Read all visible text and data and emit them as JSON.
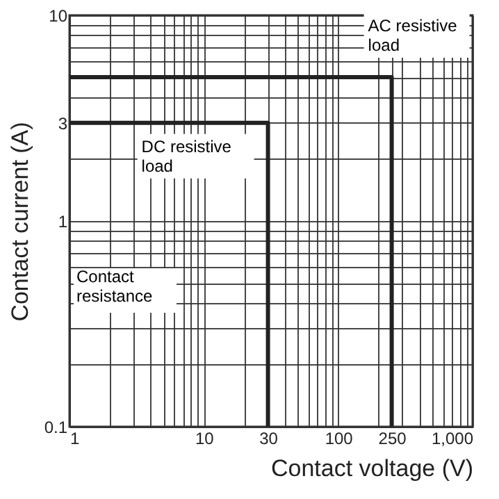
{
  "chart_data": {
    "type": "line",
    "xlabel": "Contact voltage (V)",
    "ylabel": "Contact current (A)",
    "log": "xy",
    "series": [
      {
        "name": "DC resistive load",
        "color": "#222222",
        "x": [
          1,
          30,
          30
        ],
        "values": [
          3,
          3,
          0.1
        ]
      },
      {
        "name": "AC resistive load",
        "color": "#222222",
        "x": [
          1,
          250,
          250
        ],
        "values": [
          5,
          5,
          0.1
        ]
      }
    ],
    "xlim": [
      1,
      1000
    ],
    "ylim": [
      0.1,
      10
    ],
    "xticks": [
      1,
      {
        "value": 2,
        "label": null
      },
      {
        "value": 3,
        "label": null
      },
      {
        "value": 4,
        "label": null
      },
      {
        "value": 5,
        "label": null
      },
      {
        "value": 6,
        "label": null
      },
      {
        "value": 7,
        "label": null
      },
      {
        "value": 8,
        "label": null
      },
      {
        "value": 9,
        "label": null
      },
      10,
      {
        "value": 20,
        "label": null
      },
      30,
      {
        "value": 40,
        "label": null
      },
      {
        "value": 50,
        "label": null
      },
      {
        "value": 60,
        "label": null
      },
      {
        "value": 70,
        "label": null
      },
      {
        "value": 80,
        "label": null
      },
      {
        "value": 90,
        "label": null
      },
      100,
      {
        "value": 200,
        "label": null
      },
      250,
      {
        "value": 300,
        "label": null
      },
      {
        "value": 400,
        "label": null
      },
      {
        "value": 500,
        "label": null
      },
      {
        "value": 600,
        "label": null
      },
      {
        "value": 700,
        "label": null
      },
      {
        "value": 800,
        "label": null
      },
      {
        "value": 900,
        "label": null
      },
      {
        "value": 1000,
        "label": "1,000"
      }
    ],
    "yticks": [
      0.1,
      {
        "value": 0.2,
        "label": null
      },
      {
        "value": 0.3,
        "label": null
      },
      {
        "value": 0.4,
        "label": null
      },
      {
        "value": 0.5,
        "label": null
      },
      {
        "value": 0.6,
        "label": null
      },
      {
        "value": 0.7,
        "label": null
      },
      {
        "value": 0.8,
        "label": null
      },
      {
        "value": 0.9,
        "label": null
      },
      1,
      {
        "value": 2,
        "label": null
      },
      3,
      {
        "value": 4,
        "label": null
      },
      {
        "value": 5,
        "label": null
      },
      {
        "value": 6,
        "label": null
      },
      {
        "value": 7,
        "label": null
      },
      {
        "value": 8,
        "label": null
      },
      {
        "value": 9,
        "label": null
      },
      10
    ],
    "grid": true,
    "legend": false,
    "annotations": [
      "Contact resistance"
    ]
  }
}
